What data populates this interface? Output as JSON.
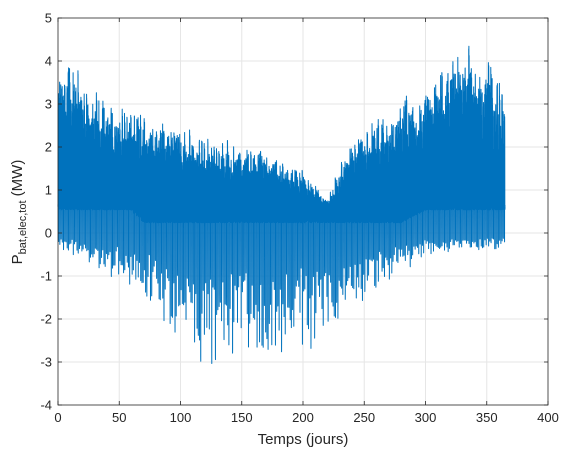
{
  "chart_data": {
    "type": "line",
    "title": "",
    "xlabel": "Temps (jours)",
    "ylabel": {
      "main": "P",
      "subscript": "bat,elec,tot",
      "unit": " (MW)"
    },
    "xlim": [
      0,
      400
    ],
    "ylim": [
      -4,
      5
    ],
    "xticks": [
      0,
      50,
      100,
      150,
      200,
      250,
      300,
      350,
      400
    ],
    "yticks": [
      -4,
      -3,
      -2,
      -1,
      0,
      1,
      2,
      3,
      4,
      5
    ],
    "grid": true,
    "line_color": "#0072BD",
    "series": [
      {
        "sampling": "hourly, approximate daily envelope (365 days)",
        "upper_envelope": {
          "x": [
            0,
            10,
            20,
            30,
            50,
            70,
            90,
            110,
            130,
            150,
            170,
            190,
            200,
            210,
            220,
            230,
            240,
            260,
            280,
            300,
            310,
            320,
            330,
            340,
            350,
            360,
            365
          ],
          "y": [
            3.6,
            3.9,
            3.5,
            3.2,
            2.9,
            2.7,
            2.5,
            2.3,
            2.1,
            2.0,
            1.8,
            1.5,
            1.4,
            1.1,
            0.8,
            1.5,
            2.3,
            2.6,
            3.0,
            3.4,
            3.9,
            4.0,
            4.1,
            4.2,
            4.1,
            3.5,
            3.0
          ]
        },
        "lower_envelope": {
          "x": [
            0,
            20,
            40,
            60,
            80,
            100,
            120,
            140,
            160,
            180,
            200,
            220,
            240,
            260,
            280,
            300,
            330,
            365
          ],
          "y": [
            -0.4,
            -0.6,
            -1.0,
            -1.4,
            -2.0,
            -2.8,
            -3.1,
            -3.3,
            -3.4,
            -3.3,
            -3.0,
            -2.6,
            -2.0,
            -1.5,
            -1.0,
            -0.6,
            -0.4,
            -0.4
          ]
        },
        "baseline": {
          "x": [
            0,
            60,
            70,
            280,
            300,
            365
          ],
          "y": [
            0.6,
            0.6,
            0.3,
            0.3,
            0.6,
            0.6
          ]
        }
      }
    ]
  }
}
